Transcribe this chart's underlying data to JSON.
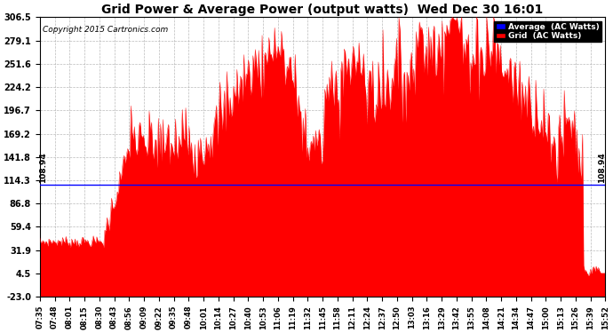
{
  "title": "Grid Power & Average Power (output watts)  Wed Dec 30 16:01",
  "copyright": "Copyright 2015 Cartronics.com",
  "average_value": 108.94,
  "ylim": [
    -23.0,
    306.5
  ],
  "yticks": [
    306.5,
    279.1,
    251.6,
    224.2,
    196.7,
    169.2,
    141.8,
    114.3,
    86.8,
    59.4,
    31.9,
    4.5,
    -23.0
  ],
  "grid_color": "#ff0000",
  "average_color": "#0000ff",
  "background_color": "#ffffff",
  "xtick_labels": [
    "07:35",
    "07:48",
    "08:01",
    "08:15",
    "08:30",
    "08:43",
    "08:56",
    "09:09",
    "09:22",
    "09:35",
    "09:48",
    "10:01",
    "10:14",
    "10:27",
    "10:40",
    "10:53",
    "11:06",
    "11:19",
    "11:32",
    "11:45",
    "11:58",
    "12:11",
    "12:24",
    "12:37",
    "12:50",
    "13:03",
    "13:16",
    "13:29",
    "13:42",
    "13:55",
    "14:08",
    "14:21",
    "14:34",
    "14:47",
    "15:00",
    "15:13",
    "15:26",
    "15:39",
    "15:52"
  ],
  "legend_avg_label": "Average  (AC Watts)",
  "legend_grid_label": "Grid  (AC Watts)",
  "avg_annotation": "108.94",
  "legend_avg_bg": "#0000ff",
  "legend_grid_bg": "#ff0000",
  "legend_text_color": "#ffffff"
}
